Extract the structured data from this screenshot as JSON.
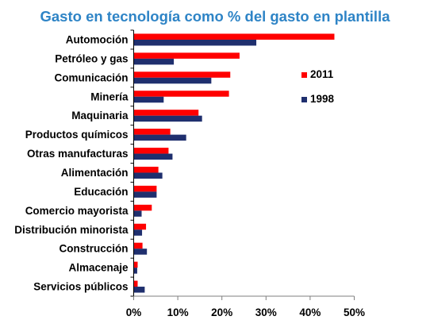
{
  "chart_data": {
    "type": "bar",
    "orientation": "horizontal",
    "title": "Gasto en tecnología como % del gasto en plantilla",
    "categories": [
      "Automoción",
      "Petróleo y gas",
      "Comunicación",
      "Minería",
      "Maquinaria",
      "Productos químicos",
      "Otras manufacturas",
      "Alimentación",
      "Educación",
      "Comercio mayorista",
      "Distribución minorista",
      "Construcción",
      "Almacenaje",
      "Servicios públicos"
    ],
    "series": [
      {
        "name": "2011",
        "color": "#ff0000",
        "values": [
          45.5,
          24.0,
          21.9,
          21.6,
          14.7,
          8.3,
          7.9,
          5.6,
          5.2,
          4.1,
          2.8,
          2.0,
          0.9,
          0.9
        ]
      },
      {
        "name": "1998",
        "color": "#1f2f6e",
        "values": [
          27.8,
          9.1,
          17.6,
          6.8,
          15.5,
          11.9,
          8.8,
          6.5,
          5.2,
          1.8,
          1.9,
          3.0,
          0.8,
          2.5
        ]
      }
    ],
    "xlim": [
      0,
      50
    ],
    "xticks": [
      0,
      10,
      20,
      30,
      40,
      50
    ],
    "xtick_labels": [
      "0%",
      "10%",
      "20%",
      "30%",
      "40%",
      "50%"
    ],
    "xlabel": "",
    "ylabel": "",
    "legend_position": "right",
    "grid": false
  },
  "colors": {
    "title": "#2e84c6",
    "axis": "#000000",
    "tick": "#7f7f7f"
  }
}
